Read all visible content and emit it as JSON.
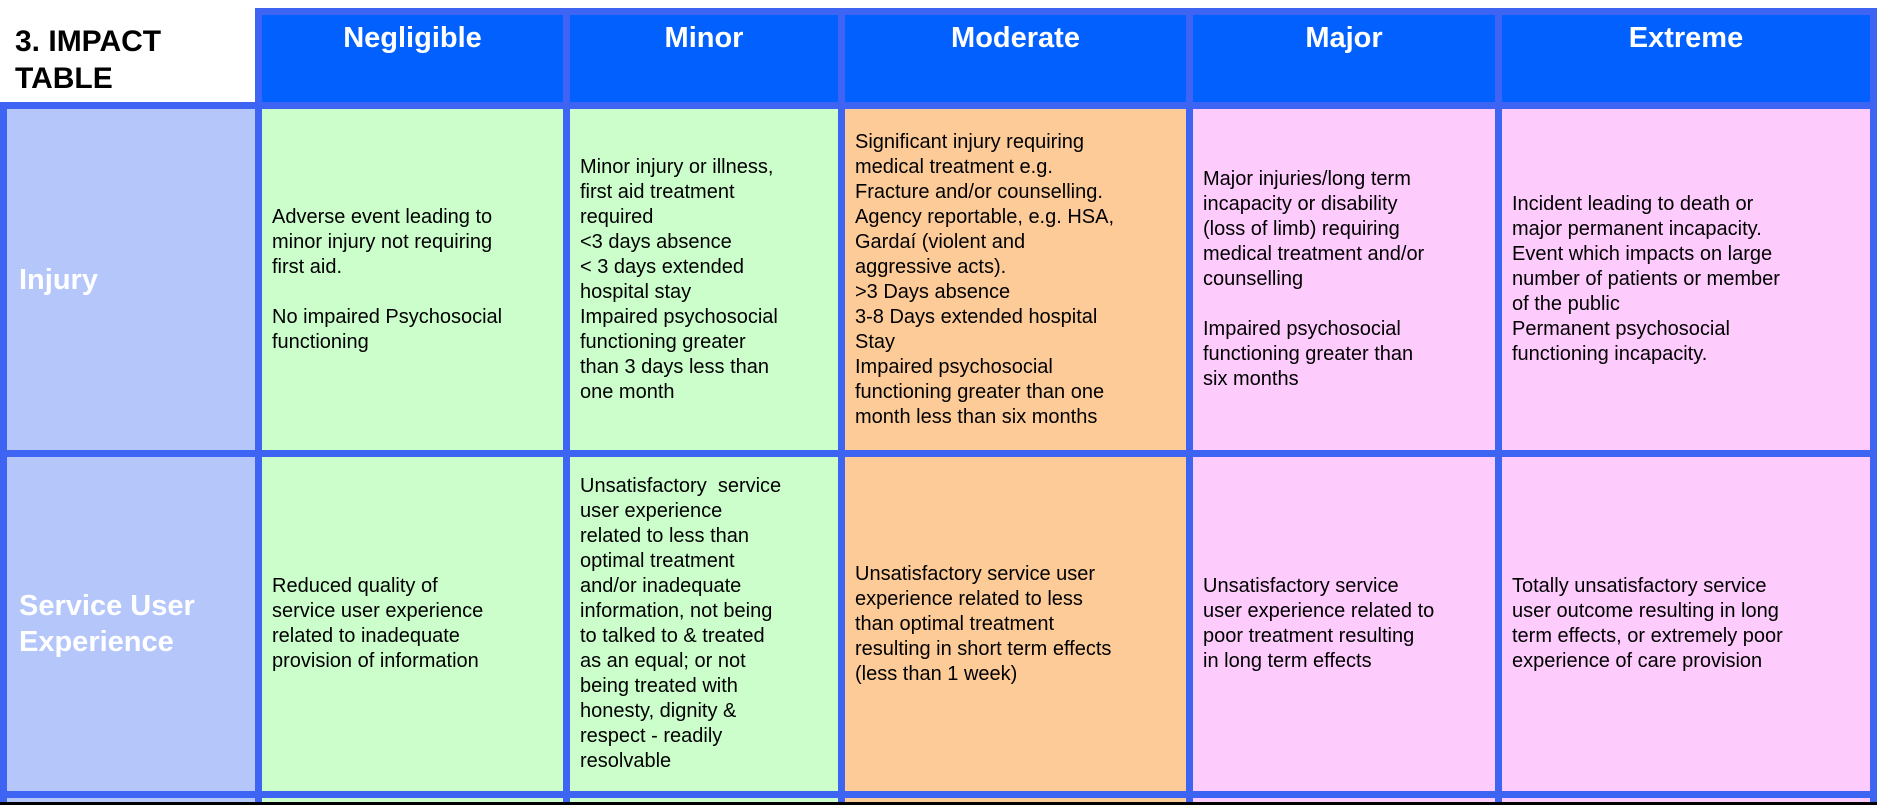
{
  "title": "3. IMPACT\nTABLE",
  "columns": [
    "Negligible",
    "Minor",
    "Moderate",
    "Major",
    "Extreme"
  ],
  "rows": [
    {
      "label": "Injury",
      "cells": [
        "Adverse event leading to\nminor injury not requiring\nfirst aid.\n\nNo impaired Psychosocial\nfunctioning",
        "Minor injury or illness,\nfirst aid treatment\nrequired\n<3 days absence\n< 3 days extended\nhospital stay\nImpaired psychosocial\nfunctioning greater\nthan 3 days less than\none month",
        "Significant injury requiring\nmedical treatment e.g.\nFracture and/or counselling.\nAgency reportable, e.g. HSA,\nGardaí (violent and\naggressive acts).\n>3 Days absence\n3-8 Days extended hospital\nStay\nImpaired psychosocial\nfunctioning greater than one\nmonth less than six months",
        "Major injuries/long term\nincapacity or disability\n(loss of limb) requiring\nmedical treatment and/or\ncounselling\n\nImpaired psychosocial\nfunctioning greater than\nsix months",
        "Incident leading to death or\nmajor permanent incapacity.\nEvent which impacts on large\nnumber of patients or member\nof the public\nPermanent psychosocial\nfunctioning incapacity."
      ]
    },
    {
      "label": "Service User Experience",
      "cells": [
        "Reduced quality of\nservice user experience\nrelated to inadequate\nprovision of information",
        "Unsatisfactory  service\nuser experience\nrelated to less than\noptimal treatment\nand/or inadequate\ninformation, not being\nto talked to & treated\nas an equal; or not\nbeing treated with\nhonesty, dignity &\nrespect - readily\nresolvable",
        "Unsatisfactory service user\nexperience related to less\nthan optimal treatment\nresulting in short term effects\n(less than 1 week)",
        "Unsatisfactory service\nuser experience related to\npoor treatment resulting\nin long term effects",
        "Totally unsatisfactory service\nuser outcome resulting in long\nterm effects, or extremely poor\nexperience of care provision"
      ]
    }
  ],
  "colors": {
    "header_bg": "#0261FE",
    "grid_border": "#3D64F3",
    "row_label_bg": "#B4C6FA",
    "negligible_bg": "#CCFECC",
    "minor_bg": "#CCFECC",
    "moderate_bg": "#FDCB98",
    "major_bg": "#FDCBFC",
    "extreme_bg": "#FDCBFC",
    "header_text": "#FFFFFF",
    "body_text": "#000000"
  }
}
